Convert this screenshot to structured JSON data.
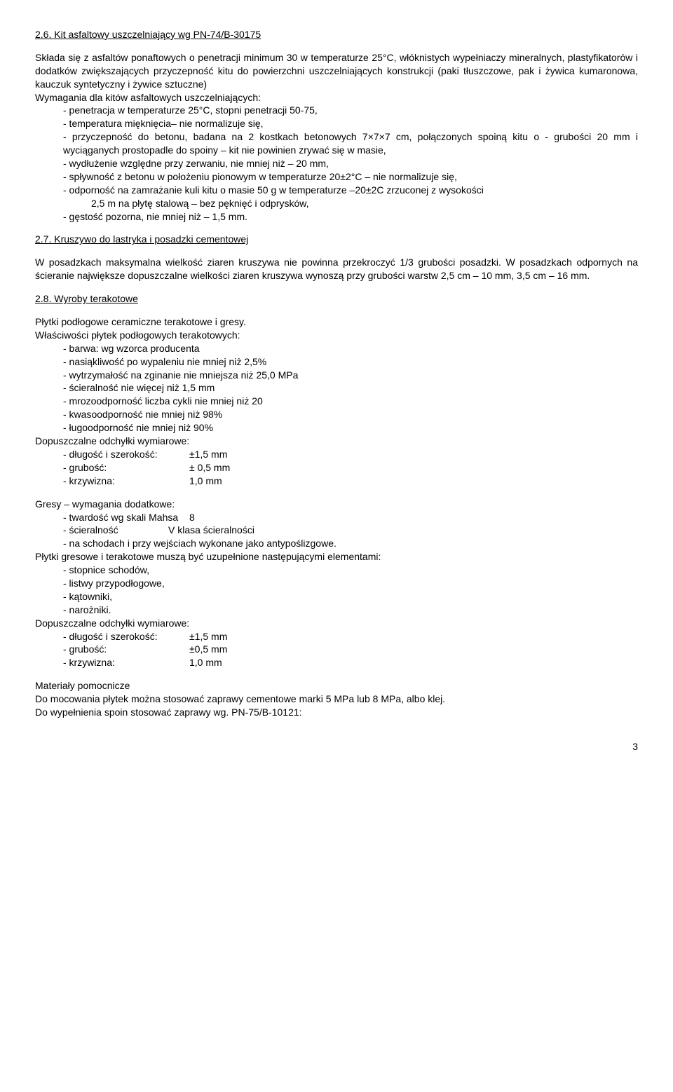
{
  "s26": {
    "heading": "2.6. Kit asfaltowy uszczelniający wg PN-74/B-30175",
    "p1": "Składa się z asfaltów ponaftowych o penetracji minimum 30 w temperaturze 25°C, włóknistych wypełniaczy mineralnych, plastyfikatorów i dodatków zwiększających przyczepność kitu do powierzchni uszczelniających konstrukcji (paki tłuszczowe, pak i żywica kumaronowa, kauczuk syntetyczny i żywice sztuczne)",
    "p2": "Wymagania dla kitów asfaltowych uszczelniających:",
    "li1": "- penetracja w temperaturze 25°C, stopni penetracji 50-75,",
    "li2": "- temperatura mięknięcia– nie normalizuje się,",
    "li3": "- przyczepność do betonu, badana na 2 kostkach betonowych 7×7×7 cm, połączonych spoiną kitu o - grubości 20 mm i wyciąganych prostopadle do spoiny – kit nie powinien zrywać się w masie,",
    "li4": "- wydłużenie względne przy zerwaniu, nie mniej niż – 20 mm,",
    "li5": "- spływność z betonu w położeniu pionowym w temperaturze 20±2°C – nie normalizuje się,",
    "li6": "- odporność na zamrażanie kuli kitu o masie 50 g w temperaturze –20±2C zrzuconej z wysokości",
    "li6b": "2,5 m na płytę stalową – bez pęknięć i odprysków,",
    "li7": "- gęstość pozorna, nie mniej niż – 1,5 mm."
  },
  "s27": {
    "heading": "2.7. Kruszywo do lastryka i posadzki cementowej",
    "p1": "W posadzkach maksymalna wielkość ziaren kruszywa nie powinna przekroczyć 1/3 grubości posadzki. W posadzkach odpornych na ścieranie największe dopuszczalne wielkości ziaren kruszywa wynoszą przy grubości warstw 2,5 cm – 10 mm, 3,5 cm – 16 mm."
  },
  "s28": {
    "heading": "2.8. Wyroby terakotowe",
    "p1": "Płytki podłogowe ceramiczne terakotowe i gresy.",
    "p2": "Właściwości płytek podłogowych terakotowych:",
    "a1": "- barwa: wg wzorca producenta",
    "a2": "- nasiąkliwość po wypaleniu nie mniej niż 2,5%",
    "a3": "- wytrzymałość na zginanie nie mniejsza niż 25,0 MPa",
    "a4": "- ścieralność nie więcej niż 1,5 mm",
    "a5": "- mrozoodporność liczba cykli nie mniej niż 20",
    "a6": "- kwasoodporność nie mniej niż 98%",
    "a7": "- ługoodporność nie mniej niż 90%",
    "p3": "Dopuszczalne odchyłki wymiarowe:",
    "d1l": "- długość i szerokość:",
    "d1v": "±1,5 mm",
    "d2l": "- grubość:",
    "d2v": "± 0,5 mm",
    "d3l": "- krzywizna:",
    "d3v": "1,0 mm",
    "p4": "Gresy – wymagania dodatkowe:",
    "g1l": "- twardość wg skali Mahsa",
    "g1v": "8",
    "g2l": "- ścieralność",
    "g2v": "V klasa ścieralności",
    "g3": "- na schodach i przy wejściach wykonane jako antypoślizgowe.",
    "p5": "Płytki gresowe i terakotowe muszą być uzupełnione następującymi elementami:",
    "e1": "- stopnice schodów,",
    "e2": "- listwy przypodłogowe,",
    "e3": "- kątowniki,",
    "e4": "- narożniki.",
    "p6": "Dopuszczalne odchyłki wymiarowe:",
    "f1l": "- długość i szerokość:",
    "f1v": "±1,5 mm",
    "f2l": "- grubość:",
    "f2v": "±0,5 mm",
    "f3l": "- krzywizna:",
    "f3v": "1,0 mm",
    "p7": "Materiały pomocnicze",
    "p8": "Do mocowania płytek można stosować zaprawy cementowe marki 5 MPa lub 8 MPa, albo klej.",
    "p9": "Do wypełnienia spoin stosować zaprawy wg. PN-75/B-10121:"
  },
  "pageNumber": "3"
}
